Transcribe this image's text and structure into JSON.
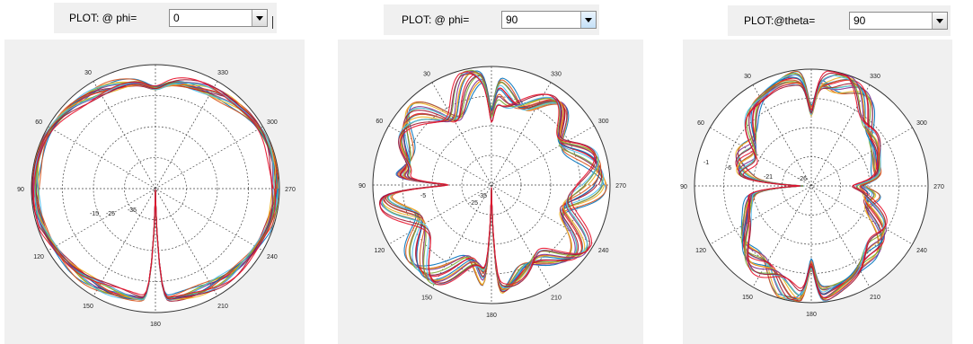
{
  "controls": [
    {
      "label": "PLOT: @ phi=",
      "value": "0"
    },
    {
      "label": "PLOT: @ phi=",
      "value": "90"
    },
    {
      "label": "PLOT:@theta=",
      "value": "90"
    }
  ],
  "icons": {
    "dropdown": "chevron-down-icon"
  },
  "chart_data": [
    {
      "type": "polar-line",
      "angle_labels": [
        "30",
        "330",
        "60",
        "300",
        "90",
        "270",
        "120",
        "240",
        "150",
        "210",
        "180"
      ],
      "radial_labels": [
        "-15",
        "-25",
        "-35"
      ],
      "grid": true,
      "series_colors": [
        "#0072bd",
        "#d95319",
        "#edb120",
        "#7e2f8e",
        "#77ac30",
        "#4dbeee",
        "#a2142f",
        "#e8102a"
      ]
    },
    {
      "type": "polar-line",
      "angle_labels": [
        "30",
        "330",
        "60",
        "300",
        "90",
        "270",
        "120",
        "240",
        "150",
        "210",
        "180"
      ],
      "radial_labels": [
        "-5",
        "-25",
        "-35"
      ],
      "grid": true,
      "series_colors": [
        "#0072bd",
        "#d95319",
        "#edb120",
        "#7e2f8e",
        "#77ac30",
        "#4dbeee",
        "#a2142f",
        "#e8102a"
      ]
    },
    {
      "type": "polar-line",
      "angle_labels": [
        "30",
        "330",
        "60",
        "300",
        "90",
        "270",
        "120",
        "240",
        "150",
        "210",
        "180"
      ],
      "radial_labels": [
        "-1",
        "-6",
        "-21",
        "-26"
      ],
      "grid": true,
      "series_colors": [
        "#0072bd",
        "#d95319",
        "#edb120",
        "#7e2f8e",
        "#77ac30",
        "#4dbeee",
        "#a2142f",
        "#e8102a"
      ]
    }
  ]
}
